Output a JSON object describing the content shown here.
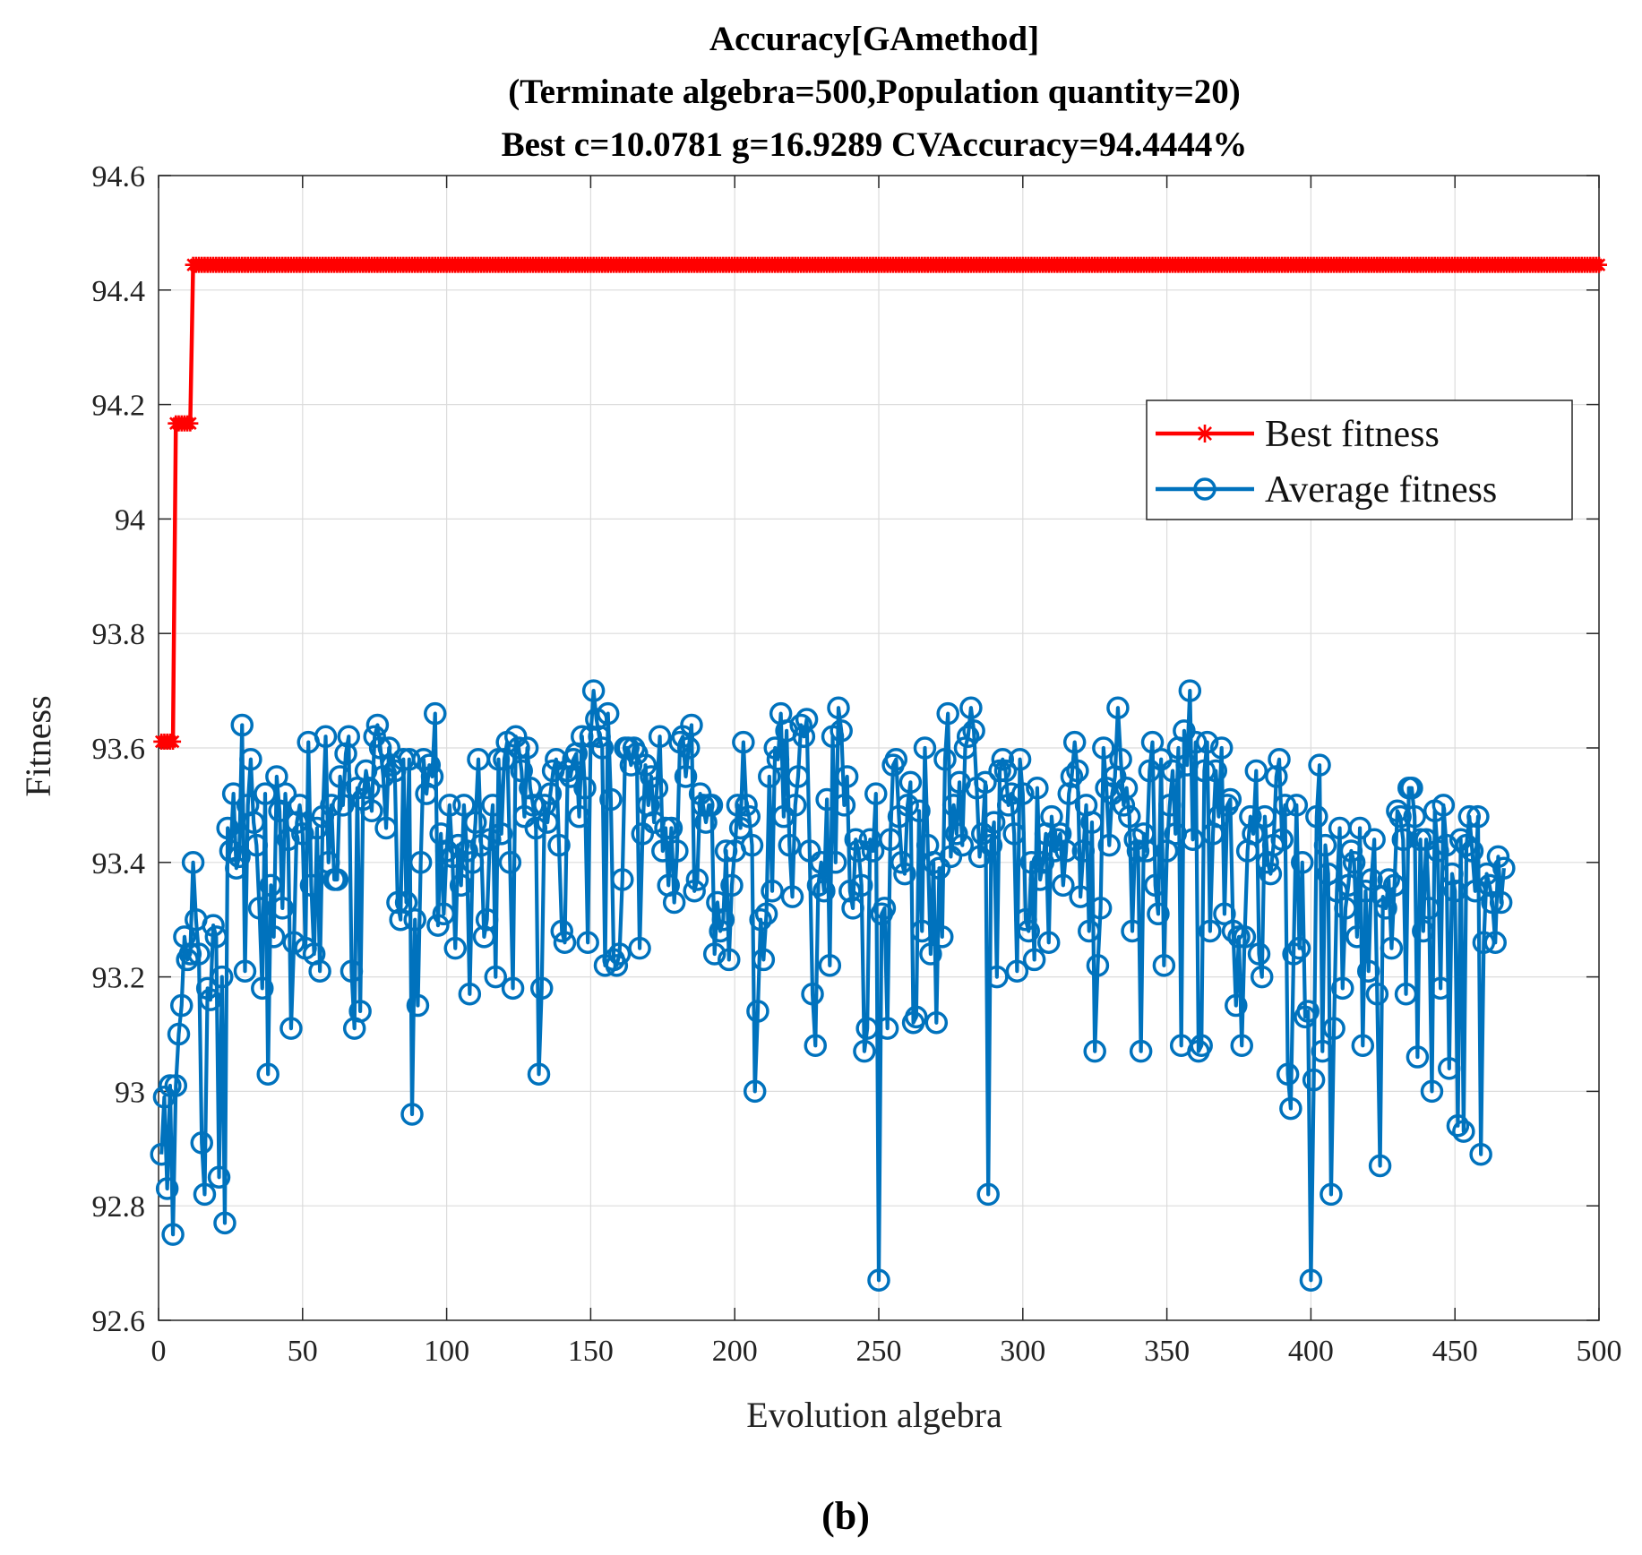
{
  "chart_data": {
    "type": "line",
    "title_lines": [
      "Accuracy[GAmethod]",
      "(Terminate algebra=500,Population quantity=20)",
      "Best c=10.0781 g=16.9289 CVAccuracy=94.4444%"
    ],
    "xlabel": "Evolution algebra",
    "ylabel": "Fitness",
    "xlim": [
      0,
      500
    ],
    "ylim": [
      92.6,
      94.6
    ],
    "xticks": [
      0,
      50,
      100,
      150,
      200,
      250,
      300,
      350,
      400,
      450,
      500
    ],
    "xtick_labels": [
      "0",
      "50",
      "100",
      "150",
      "200",
      "250",
      "300",
      "350",
      "400",
      "450",
      "500"
    ],
    "yticks": [
      92.6,
      92.8,
      93.0,
      93.2,
      93.4,
      93.6,
      93.8,
      94.0,
      94.2,
      94.4,
      94.6
    ],
    "ytick_labels": [
      "92.6",
      "92.8",
      "93",
      "93.2",
      "93.4",
      "93.6",
      "93.8",
      "94",
      "94.2",
      "94.4",
      "94.6"
    ],
    "grid": true,
    "legend_position": "upper-right",
    "caption": "(b)",
    "series": [
      {
        "name": "Best fitness",
        "color": "#ff0000",
        "marker": "asterisk",
        "segments": [
          {
            "x_from": 1,
            "x_to": 5,
            "value": 93.611
          },
          {
            "x_from": 6,
            "x_to": 11,
            "value": 94.167
          },
          {
            "x_from": 11,
            "x_to": 500,
            "value": 94.444
          }
        ]
      },
      {
        "name": "Average fitness",
        "color": "#0072bd",
        "marker": "circle",
        "x_start": 1,
        "values": [
          92.89,
          92.99,
          92.83,
          93.01,
          92.75,
          93.01,
          93.1,
          93.15,
          93.27,
          93.23,
          93.24,
          93.4,
          93.3,
          93.24,
          92.91,
          92.82,
          93.18,
          93.16,
          93.29,
          93.27,
          92.85,
          93.2,
          92.77,
          93.46,
          93.42,
          93.52,
          93.39,
          93.41,
          93.64,
          93.21,
          93.5,
          93.58,
          93.47,
          93.43,
          93.32,
          93.18,
          93.52,
          93.03,
          93.36,
          93.27,
          93.55,
          93.49,
          93.32,
          93.52,
          93.44,
          93.11,
          93.26,
          93.47,
          93.5,
          93.45,
          93.25,
          93.61,
          93.36,
          93.24,
          93.46,
          93.21,
          93.48,
          93.62,
          93.4,
          93.5,
          93.37,
          93.37,
          93.55,
          93.5,
          93.59,
          93.62,
          93.21,
          93.11,
          93.53,
          93.14,
          93.51,
          93.56,
          93.53,
          93.49,
          93.62,
          93.64,
          93.6,
          93.55,
          93.46,
          93.6,
          93.57,
          93.56,
          93.33,
          93.3,
          93.58,
          93.33,
          93.58,
          92.96,
          93.3,
          93.15,
          93.4,
          93.58,
          93.52,
          93.57,
          93.55,
          93.66,
          93.29,
          93.45,
          93.31,
          93.42,
          93.5,
          93.41,
          93.25,
          93.43,
          93.36,
          93.5,
          93.42,
          93.17,
          93.4,
          93.47,
          93.58,
          93.43,
          93.27,
          93.3,
          93.44,
          93.5,
          93.2,
          93.58,
          93.45,
          93.58,
          93.61,
          93.4,
          93.18,
          93.62,
          93.6,
          93.56,
          93.48,
          93.6,
          93.53,
          93.5,
          93.46,
          93.03,
          93.18,
          93.5,
          93.47,
          93.52,
          93.56,
          93.58,
          93.43,
          93.28,
          93.26,
          93.56,
          93.55,
          93.58,
          93.59,
          93.48,
          93.62,
          93.53,
          93.26,
          93.62,
          93.7,
          93.65,
          93.62,
          93.6,
          93.22,
          93.66,
          93.51,
          93.23,
          93.22,
          93.24,
          93.37,
          93.6,
          93.6,
          93.57,
          93.6,
          93.59,
          93.25,
          93.45,
          93.57,
          93.5,
          93.55,
          93.47,
          93.53,
          93.62,
          93.42,
          93.46,
          93.36,
          93.46,
          93.33,
          93.42,
          93.61,
          93.62,
          93.55,
          93.6,
          93.64,
          93.35,
          93.37,
          93.52,
          93.5,
          93.47,
          93.5,
          93.5,
          93.24,
          93.33,
          93.28,
          93.3,
          93.42,
          93.23,
          93.36,
          93.42,
          93.5,
          93.46,
          93.61,
          93.5,
          93.48,
          93.43,
          93.0,
          93.14,
          93.3,
          93.23,
          93.31,
          93.55,
          93.35,
          93.6,
          93.58,
          93.66,
          93.48,
          93.63,
          93.43,
          93.34,
          93.5,
          93.55,
          93.64,
          93.62,
          93.65,
          93.42,
          93.17,
          93.08,
          93.36,
          93.4,
          93.35,
          93.51,
          93.22,
          93.62,
          93.4,
          93.67,
          93.63,
          93.5,
          93.55,
          93.35,
          93.32,
          93.44,
          93.42,
          93.36,
          93.07,
          93.11,
          93.44,
          93.42,
          93.52,
          92.67,
          93.31,
          93.32,
          93.11,
          93.44,
          93.57,
          93.58,
          93.48,
          93.4,
          93.38,
          93.5,
          93.54,
          93.12,
          93.13,
          93.49,
          93.28,
          93.6,
          93.43,
          93.24,
          93.4,
          93.12,
          93.39,
          93.27,
          93.58,
          93.66,
          93.41,
          93.5,
          93.45,
          93.54,
          93.43,
          93.6,
          93.62,
          93.67,
          93.63,
          93.53,
          93.41,
          93.45,
          93.54,
          92.82,
          93.43,
          93.47,
          93.2,
          93.56,
          93.58,
          93.56,
          93.5,
          93.52,
          93.45,
          93.21,
          93.58,
          93.52,
          93.3,
          93.28,
          93.4,
          93.23,
          93.53,
          93.37,
          93.4,
          93.45,
          93.26,
          93.48,
          93.42,
          93.44,
          93.45,
          93.36,
          93.42,
          93.52,
          93.55,
          93.61,
          93.56,
          93.34,
          93.42,
          93.5,
          93.28,
          93.47,
          93.07,
          93.22,
          93.32,
          93.6,
          93.53,
          93.43,
          93.52,
          93.55,
          93.67,
          93.58,
          93.5,
          93.53,
          93.48,
          93.28,
          93.44,
          93.42,
          93.07,
          93.45,
          93.42,
          93.56,
          93.61,
          93.36,
          93.31,
          93.58,
          93.22,
          93.42,
          93.5,
          93.56,
          93.45,
          93.6,
          93.08,
          93.63,
          93.57,
          93.7,
          93.44,
          93.61,
          93.07,
          93.08,
          93.56,
          93.61,
          93.28,
          93.45,
          93.56,
          93.48,
          93.6,
          93.31,
          93.5,
          93.51,
          93.28,
          93.15,
          93.27,
          93.08,
          93.27,
          93.42,
          93.48,
          93.45,
          93.56,
          93.24,
          93.2,
          93.48,
          93.4,
          93.38,
          93.43,
          93.55,
          93.58,
          93.44,
          93.5,
          93.03,
          92.97,
          93.24,
          93.5,
          93.25,
          93.4,
          93.13,
          93.14,
          92.67,
          93.02,
          93.48,
          93.57,
          93.07,
          93.43,
          93.38,
          92.82,
          93.11,
          93.35,
          93.46,
          93.18,
          93.32,
          93.36,
          93.42,
          93.4,
          93.27,
          93.46,
          93.08,
          93.35,
          93.21,
          93.37,
          93.44,
          93.17,
          92.87,
          93.34,
          93.32,
          93.37,
          93.25,
          93.36,
          93.49,
          93.48,
          93.44,
          93.17,
          93.53,
          93.53,
          93.48,
          93.06,
          93.44,
          93.28,
          93.44,
          93.32,
          93.0,
          93.49,
          93.42,
          93.18,
          93.5,
          93.43,
          93.04,
          93.38,
          93.35,
          92.94,
          93.44,
          92.93,
          93.43,
          93.48,
          93.42,
          93.35,
          93.48,
          92.89,
          93.26,
          93.38,
          93.36,
          93.33,
          93.26,
          93.41,
          93.33,
          93.39
        ]
      }
    ]
  }
}
